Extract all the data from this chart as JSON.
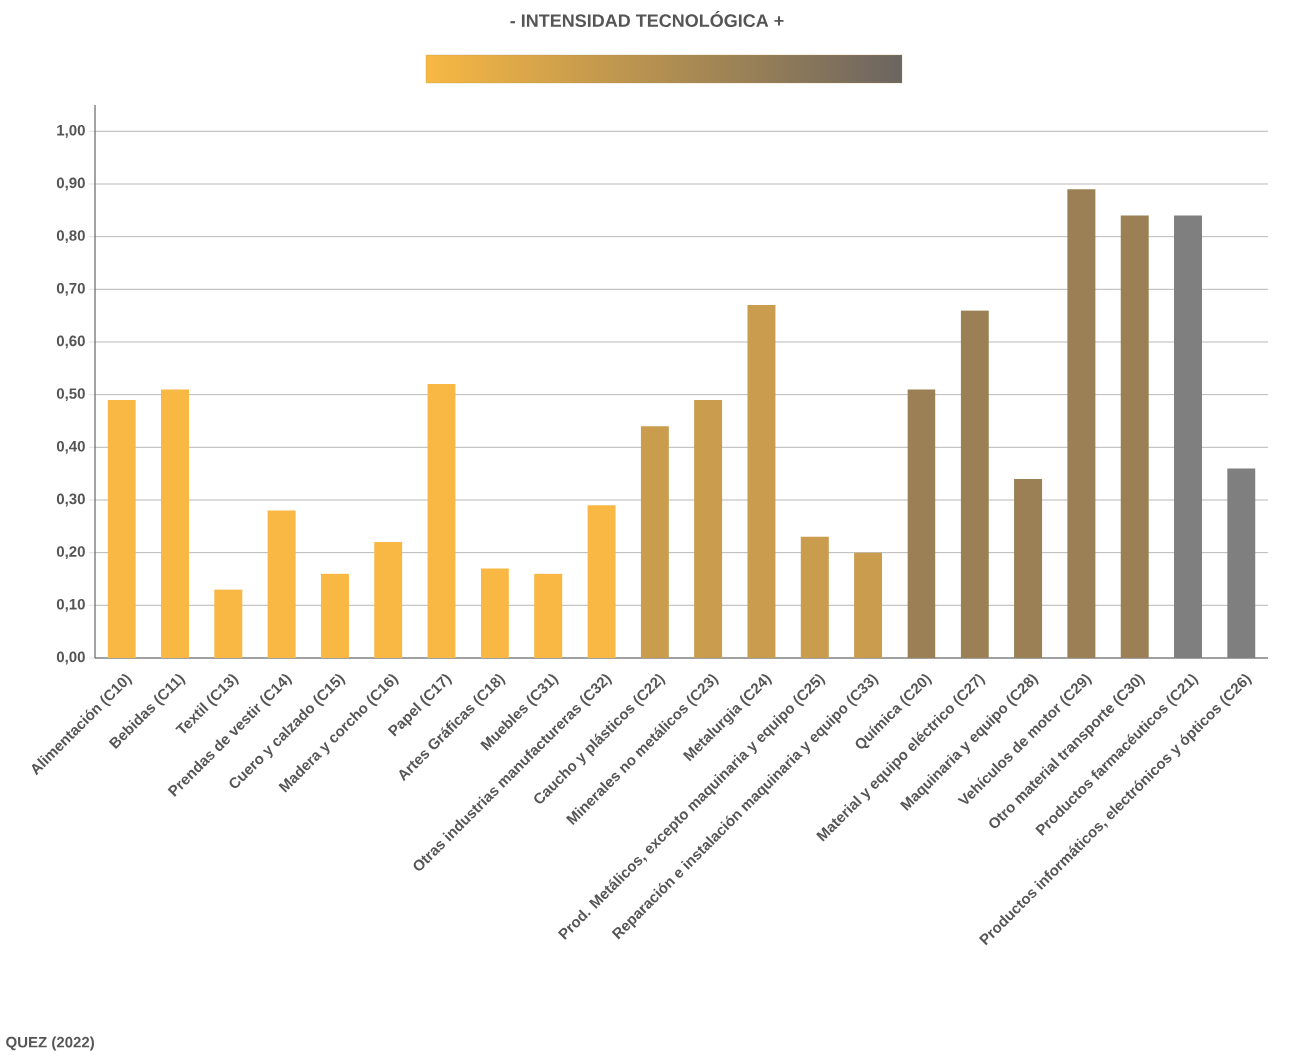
{
  "chart_data": {
    "type": "bar",
    "title": "- INTENSIDAD TECNOLÓGICA +",
    "categories": [
      "Alimentación (C10)",
      "Bebidas (C11)",
      "Textil (C13)",
      "Prendas de vestir (C14)",
      "Cuero y calzado (C15)",
      "Madera y corcho (C16)",
      "Papel (C17)",
      "Artes Gráficas (C18)",
      "Muebles (C31)",
      "Otras industrias manufactureras (C32)",
      "Caucho y plásticos (C22)",
      "Minerales no metálicos (C23)",
      "Metalurgia (C24)",
      "Prod. Metálicos, excepto maquinaria y equipo (C25)",
      "Reparación e instalación maquinaria y equipo (C33)",
      "Química (C20)",
      "Material y equipo eléctrico (C27)",
      "Maquinaria y equipo (C28)",
      "Vehículos de motor (C29)",
      "Otro material transporte (C30)",
      "Productos farmacéuticos (C21)",
      "Productos informáticos, electrónicos y ópticos (C26)"
    ],
    "values": [
      0.49,
      0.51,
      0.13,
      0.28,
      0.16,
      0.22,
      0.52,
      0.17,
      0.16,
      0.29,
      0.44,
      0.49,
      0.67,
      0.23,
      0.2,
      0.51,
      0.66,
      0.34,
      0.89,
      0.84,
      0.84,
      0.36
    ],
    "colors": [
      "#f8b843",
      "#f8b843",
      "#f8b843",
      "#f8b843",
      "#f8b843",
      "#f8b843",
      "#f8b843",
      "#f8b843",
      "#f8b843",
      "#f8b843",
      "#c99c4e",
      "#c99c4e",
      "#c99c4e",
      "#c99c4e",
      "#c99c4e",
      "#9a8054",
      "#9a8054",
      "#9a8054",
      "#9a8054",
      "#9a8054",
      "#7f7f7f",
      "#7f7f7f"
    ],
    "ylim": [
      0,
      1.05
    ],
    "yticks": [
      {
        "value": 0,
        "label": "0,00"
      },
      {
        "value": 0.1,
        "label": "0,10"
      },
      {
        "value": 0.2,
        "label": "0,20"
      },
      {
        "value": 0.3,
        "label": "0,30"
      },
      {
        "value": 0.4,
        "label": "0,40"
      },
      {
        "value": 0.5,
        "label": "0,50"
      },
      {
        "value": 0.6,
        "label": "0,60"
      },
      {
        "value": 0.7,
        "label": "0,70"
      },
      {
        "value": 0.8,
        "label": "0,80"
      },
      {
        "value": 0.9,
        "label": "0,90"
      },
      {
        "value": 1.0,
        "label": "1,00"
      }
    ],
    "grid": "y",
    "annotations": [
      "QUEZ (2022)"
    ]
  }
}
